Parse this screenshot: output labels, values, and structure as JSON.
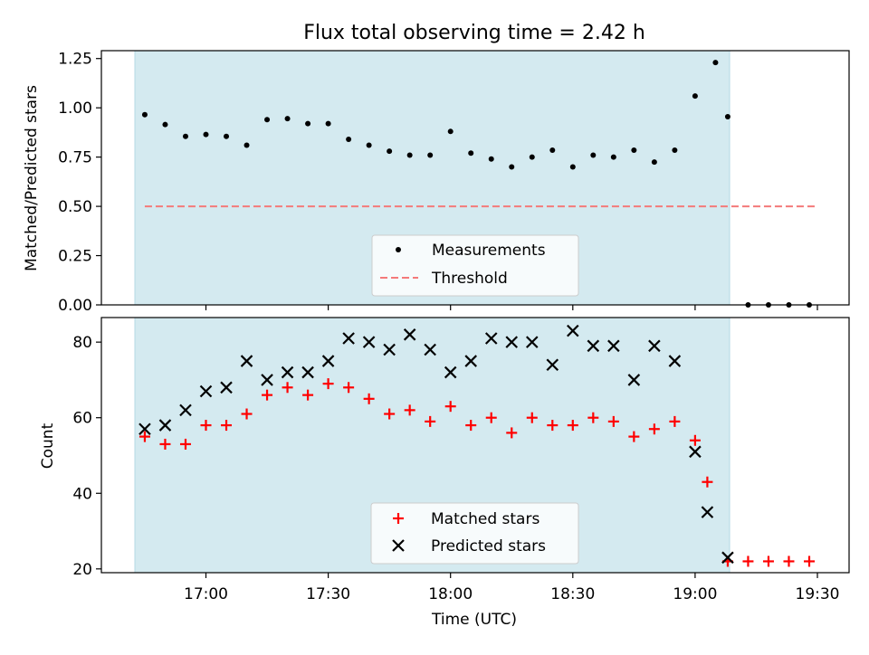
{
  "figure": {
    "title": "Flux total observing time = 2.42 h"
  },
  "chart_data": [
    {
      "type": "scatter",
      "ylabel": "Matched/Predicted stars",
      "xlabel": "",
      "ylim": [
        0.0,
        1.29
      ],
      "yticks": [
        "0.00",
        "0.25",
        "0.50",
        "0.75",
        "1.00",
        "1.25"
      ],
      "yticks_values": [
        0.0,
        0.25,
        0.5,
        0.75,
        1.0,
        1.25
      ],
      "shaded_time_range": [
        "16:45",
        "19:08"
      ],
      "shaded_color": "#d4eaf0",
      "series": [
        {
          "name": "Measurements",
          "marker": "dot",
          "color": "#000000",
          "x": [
            "16:45",
            "16:50",
            "16:55",
            "17:00",
            "17:05",
            "17:10",
            "17:15",
            "17:20",
            "17:25",
            "17:30",
            "17:35",
            "17:40",
            "17:45",
            "17:50",
            "17:55",
            "18:00",
            "18:05",
            "18:10",
            "18:15",
            "18:20",
            "18:25",
            "18:30",
            "18:35",
            "18:40",
            "18:45",
            "18:50",
            "18:55",
            "19:00",
            "19:05",
            "19:08",
            "19:13",
            "19:18",
            "19:23",
            "19:28"
          ],
          "values": [
            0.965,
            0.915,
            0.855,
            0.865,
            0.855,
            0.81,
            0.94,
            0.945,
            0.92,
            0.92,
            0.84,
            0.81,
            0.78,
            0.76,
            0.76,
            0.88,
            0.77,
            0.74,
            0.7,
            0.75,
            0.785,
            0.7,
            0.76,
            0.75,
            0.785,
            0.725,
            0.785,
            1.06,
            1.23,
            0.955,
            0.0,
            0.0,
            0.0,
            0.0
          ]
        },
        {
          "name": "Threshold",
          "style": "dashed",
          "color": "#f47a7a",
          "x": [
            "16:45",
            "19:30"
          ],
          "values": [
            0.5,
            0.5
          ]
        }
      ],
      "legend": "lower-center"
    },
    {
      "type": "scatter",
      "ylabel": "Count",
      "xlabel": "Time (UTC)",
      "ylim": [
        19.0,
        86.5
      ],
      "yticks": [
        "20",
        "40",
        "60",
        "80"
      ],
      "yticks_values": [
        20,
        40,
        60,
        80
      ],
      "xticks": [
        "17:00",
        "17:30",
        "18:00",
        "18:30",
        "19:00",
        "19:30"
      ],
      "xlim": [
        "16:41",
        "19:38"
      ],
      "shaded_time_range": [
        "16:45",
        "19:08"
      ],
      "shaded_color": "#d4eaf0",
      "series": [
        {
          "name": "Matched stars",
          "marker": "plus",
          "color": "#ff0000",
          "x": [
            "16:45",
            "16:50",
            "16:55",
            "17:00",
            "17:05",
            "17:10",
            "17:15",
            "17:20",
            "17:25",
            "17:30",
            "17:35",
            "17:40",
            "17:45",
            "17:50",
            "17:55",
            "18:00",
            "18:05",
            "18:10",
            "18:15",
            "18:20",
            "18:25",
            "18:30",
            "18:35",
            "18:40",
            "18:45",
            "18:50",
            "18:55",
            "19:00",
            "19:03",
            "19:08",
            "19:13",
            "19:18",
            "19:23",
            "19:28"
          ],
          "values": [
            55,
            53,
            53,
            58,
            58,
            61,
            66,
            68,
            66,
            69,
            68,
            65,
            61,
            62,
            59,
            63,
            58,
            60,
            56,
            60,
            58,
            58,
            60,
            59,
            55,
            57,
            59,
            54,
            43,
            22,
            22,
            22,
            22,
            22
          ]
        },
        {
          "name": "Predicted stars",
          "marker": "x",
          "color": "#000000",
          "x": [
            "16:45",
            "16:50",
            "16:55",
            "17:00",
            "17:05",
            "17:10",
            "17:15",
            "17:20",
            "17:25",
            "17:30",
            "17:35",
            "17:40",
            "17:45",
            "17:50",
            "17:55",
            "18:00",
            "18:05",
            "18:10",
            "18:15",
            "18:20",
            "18:25",
            "18:30",
            "18:35",
            "18:40",
            "18:45",
            "18:50",
            "18:55",
            "19:00",
            "19:03",
            "19:08"
          ],
          "values": [
            57,
            58,
            62,
            67,
            68,
            75,
            70,
            72,
            72,
            75,
            81,
            80,
            78,
            82,
            78,
            72,
            75,
            81,
            80,
            80,
            74,
            83,
            79,
            79,
            70,
            79,
            75,
            51,
            35,
            23
          ]
        }
      ],
      "legend": "lower-center"
    }
  ]
}
